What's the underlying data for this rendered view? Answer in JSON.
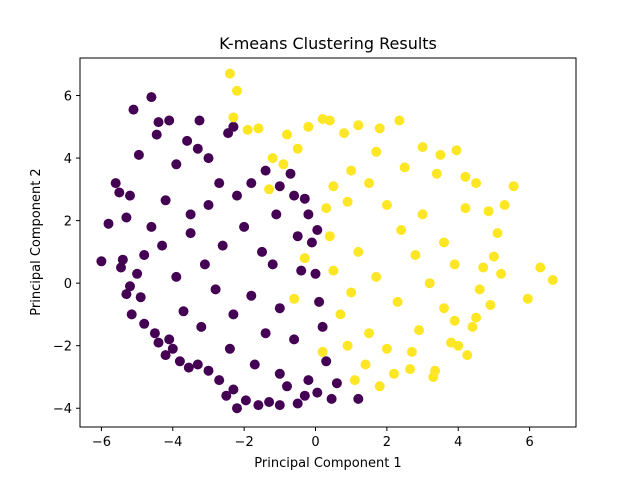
{
  "chart_data": {
    "type": "scatter",
    "title": "K-means Clustering Results",
    "xlabel": "Principal Component 1",
    "ylabel": "Principal Component 2",
    "xlim": [
      -6.6,
      7.3
    ],
    "ylim": [
      -4.6,
      7.2
    ],
    "xticks": [
      -6,
      -4,
      -2,
      0,
      2,
      4,
      6
    ],
    "yticks": [
      -4,
      -2,
      0,
      2,
      4,
      6
    ],
    "grid": false,
    "legend": "none",
    "colors": {
      "cluster_0": "#440154",
      "cluster_1": "#fde725"
    },
    "series": [
      {
        "cluster": 0,
        "color": "#440154",
        "points": [
          [
            -6.0,
            0.7
          ],
          [
            -5.8,
            1.9
          ],
          [
            -5.6,
            3.2
          ],
          [
            -5.5,
            2.9
          ],
          [
            -5.3,
            2.1
          ],
          [
            -5.2,
            2.8
          ],
          [
            -5.1,
            5.55
          ],
          [
            -4.95,
            4.1
          ],
          [
            -4.6,
            5.95
          ],
          [
            -4.45,
            4.75
          ],
          [
            -4.4,
            5.15
          ],
          [
            -4.2,
            2.65
          ],
          [
            -4.1,
            5.2
          ],
          [
            -3.9,
            3.8
          ],
          [
            -3.6,
            4.55
          ],
          [
            -3.5,
            2.2
          ],
          [
            -3.25,
            5.2
          ],
          [
            -3.3,
            4.3
          ],
          [
            -3.0,
            4.0
          ],
          [
            -2.7,
            3.2
          ],
          [
            -2.45,
            4.8
          ],
          [
            -2.3,
            5.0
          ],
          [
            -5.4,
            0.75
          ],
          [
            -5.45,
            0.5
          ],
          [
            -5.3,
            -0.35
          ],
          [
            -5.2,
            -0.1
          ],
          [
            -5.15,
            -1.0
          ],
          [
            -5.0,
            0.3
          ],
          [
            -4.9,
            -0.45
          ],
          [
            -4.8,
            -1.3
          ],
          [
            -4.5,
            -1.6
          ],
          [
            -4.4,
            -1.9
          ],
          [
            -4.2,
            -2.3
          ],
          [
            -4.1,
            -1.8
          ],
          [
            -4.0,
            -2.1
          ],
          [
            -3.8,
            -2.5
          ],
          [
            -3.55,
            -2.7
          ],
          [
            -3.3,
            -2.6
          ],
          [
            -3.0,
            -2.8
          ],
          [
            -2.7,
            -3.1
          ],
          [
            -2.5,
            -3.6
          ],
          [
            -2.3,
            -3.4
          ],
          [
            -2.2,
            -4.0
          ],
          [
            -1.95,
            -3.75
          ],
          [
            -1.6,
            -3.9
          ],
          [
            -1.3,
            -3.8
          ],
          [
            -1.0,
            -3.9
          ],
          [
            -0.5,
            -3.85
          ],
          [
            -0.3,
            -3.6
          ],
          [
            -0.2,
            -3.1
          ],
          [
            0.05,
            -3.5
          ],
          [
            0.45,
            -3.7
          ],
          [
            1.2,
            -3.7
          ],
          [
            0.6,
            -3.2
          ],
          [
            0.3,
            -2.5
          ],
          [
            0.2,
            -1.4
          ],
          [
            0.1,
            -0.6
          ],
          [
            0.0,
            0.3
          ],
          [
            -0.1,
            1.3
          ],
          [
            0.05,
            1.7
          ],
          [
            -0.2,
            2.2
          ],
          [
            -0.6,
            2.8
          ],
          [
            -0.7,
            3.5
          ],
          [
            -1.0,
            3.1
          ],
          [
            -1.4,
            3.6
          ],
          [
            -1.8,
            3.2
          ],
          [
            -1.1,
            2.2
          ],
          [
            -1.5,
            1.0
          ],
          [
            -2.0,
            1.8
          ],
          [
            -2.6,
            1.2
          ],
          [
            -3.1,
            0.6
          ],
          [
            -3.5,
            1.6
          ],
          [
            -3.9,
            0.2
          ],
          [
            -4.3,
            1.2
          ],
          [
            -3.7,
            -0.9
          ],
          [
            -3.2,
            -1.4
          ],
          [
            -2.8,
            -0.2
          ],
          [
            -2.3,
            -1.0
          ],
          [
            -1.8,
            -0.4
          ],
          [
            -1.4,
            -1.6
          ],
          [
            -1.0,
            -0.8
          ],
          [
            -0.6,
            -1.8
          ],
          [
            -0.4,
            0.4
          ],
          [
            -1.2,
            0.6
          ],
          [
            -2.4,
            -2.1
          ],
          [
            -1.7,
            -2.6
          ],
          [
            -1.0,
            -2.9
          ],
          [
            -3.0,
            2.5
          ],
          [
            -2.2,
            2.8
          ],
          [
            -4.6,
            1.8
          ],
          [
            -4.8,
            0.9
          ],
          [
            -0.8,
            -3.3
          ],
          [
            -0.5,
            1.5
          ],
          [
            -0.3,
            2.7
          ]
        ]
      },
      {
        "cluster": 1,
        "color": "#fde725",
        "points": [
          [
            -2.4,
            6.7
          ],
          [
            -2.2,
            6.15
          ],
          [
            -2.3,
            5.3
          ],
          [
            -1.9,
            4.9
          ],
          [
            -1.6,
            4.95
          ],
          [
            -1.2,
            4.0
          ],
          [
            -0.8,
            4.75
          ],
          [
            -0.5,
            4.3
          ],
          [
            -0.2,
            5.0
          ],
          [
            0.2,
            5.25
          ],
          [
            0.4,
            5.2
          ],
          [
            0.8,
            4.8
          ],
          [
            1.2,
            5.05
          ],
          [
            1.8,
            4.95
          ],
          [
            2.35,
            5.2
          ],
          [
            3.0,
            4.35
          ],
          [
            3.5,
            4.1
          ],
          [
            3.95,
            4.25
          ],
          [
            4.2,
            3.4
          ],
          [
            4.5,
            3.2
          ],
          [
            4.85,
            2.3
          ],
          [
            5.1,
            1.6
          ],
          [
            5.3,
            2.5
          ],
          [
            5.55,
            3.1
          ],
          [
            5.0,
            0.85
          ],
          [
            4.7,
            0.5
          ],
          [
            5.2,
            0.3
          ],
          [
            6.3,
            0.5
          ],
          [
            6.65,
            0.1
          ],
          [
            5.95,
            -0.5
          ],
          [
            4.9,
            -0.7
          ],
          [
            4.5,
            -1.1
          ],
          [
            4.4,
            -1.4
          ],
          [
            4.25,
            -2.3
          ],
          [
            4.0,
            -2.0
          ],
          [
            3.8,
            -1.9
          ],
          [
            3.35,
            -2.8
          ],
          [
            3.3,
            -3.0
          ],
          [
            2.65,
            -2.75
          ],
          [
            2.2,
            -2.9
          ],
          [
            1.8,
            -3.3
          ],
          [
            1.4,
            -2.6
          ],
          [
            1.1,
            -3.1
          ],
          [
            0.9,
            -2.0
          ],
          [
            0.7,
            -1.0
          ],
          [
            0.5,
            0.4
          ],
          [
            0.4,
            1.5
          ],
          [
            0.3,
            2.4
          ],
          [
            0.5,
            3.1
          ],
          [
            1.0,
            3.6
          ],
          [
            1.5,
            3.2
          ],
          [
            2.0,
            2.5
          ],
          [
            2.4,
            1.7
          ],
          [
            2.8,
            0.9
          ],
          [
            3.2,
            0.0
          ],
          [
            3.6,
            -0.8
          ],
          [
            2.9,
            -1.5
          ],
          [
            2.3,
            -0.6
          ],
          [
            1.7,
            0.2
          ],
          [
            1.2,
            1.0
          ],
          [
            1.0,
            -0.3
          ],
          [
            1.5,
            -1.6
          ],
          [
            2.0,
            -2.1
          ],
          [
            3.0,
            2.2
          ],
          [
            3.6,
            1.3
          ],
          [
            3.9,
            0.6
          ],
          [
            4.2,
            2.4
          ],
          [
            2.5,
            3.7
          ],
          [
            1.7,
            4.2
          ],
          [
            -0.9,
            3.8
          ],
          [
            -1.3,
            3.0
          ],
          [
            -0.3,
            0.8
          ],
          [
            -0.6,
            -0.5
          ],
          [
            0.9,
            2.6
          ],
          [
            4.6,
            -0.2
          ],
          [
            3.4,
            3.5
          ],
          [
            0.2,
            -2.2
          ],
          [
            2.7,
            -2.2
          ],
          [
            3.9,
            -1.2
          ]
        ]
      }
    ]
  }
}
